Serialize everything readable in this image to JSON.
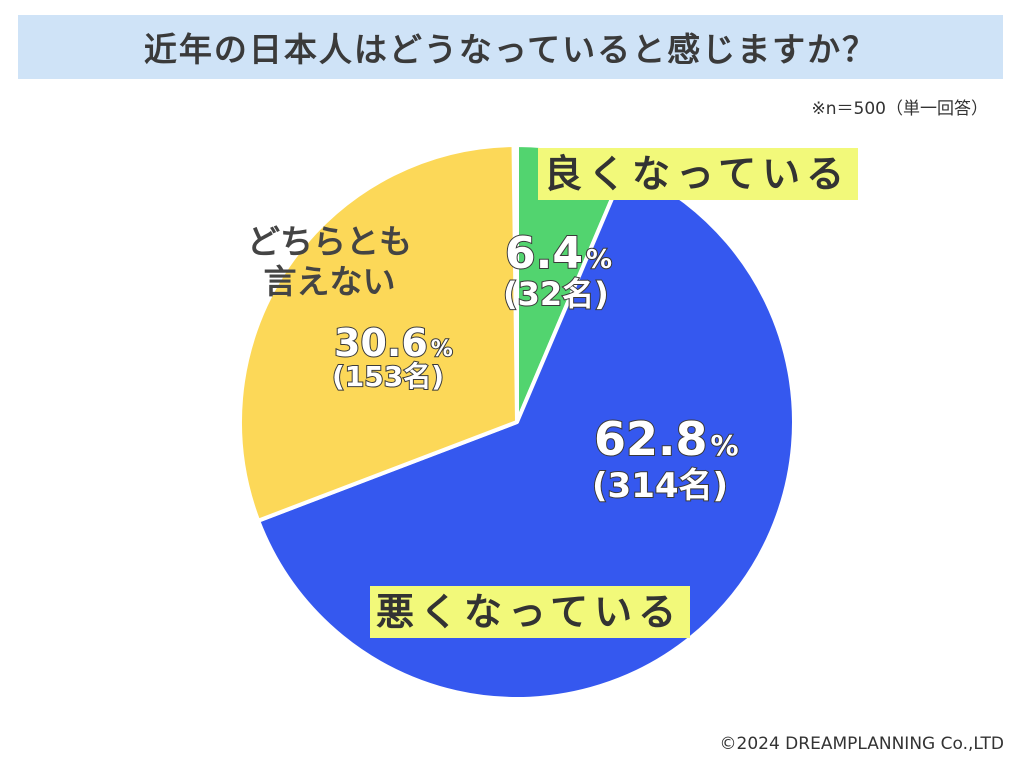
{
  "title": "近年の日本人はどうなっていると感じますか？",
  "note": "※n＝500（単一回答）",
  "copyright": "©2024 DREAMPLANNING Co.,LTD",
  "colors": {
    "title_bg": "#cfe3f7",
    "good": "#52d46f",
    "bad": "#3558ef",
    "neutral": "#fcd858",
    "highlight": "#f2f97a"
  },
  "chart_data": {
    "type": "pie",
    "total_n": 500,
    "slices": [
      {
        "label": "良くなっている",
        "percent": 6.4,
        "count": 32,
        "count_label": "(32名)",
        "color": "#52d46f"
      },
      {
        "label": "悪くなっている",
        "percent": 62.8,
        "count": 314,
        "count_label": "(314名)",
        "color": "#3558ef"
      },
      {
        "label_lines": [
          "どちらとも",
          "言えない"
        ],
        "percent": 30.6,
        "count": 153,
        "count_label": "(153名)",
        "color": "#fcd858"
      }
    ]
  }
}
